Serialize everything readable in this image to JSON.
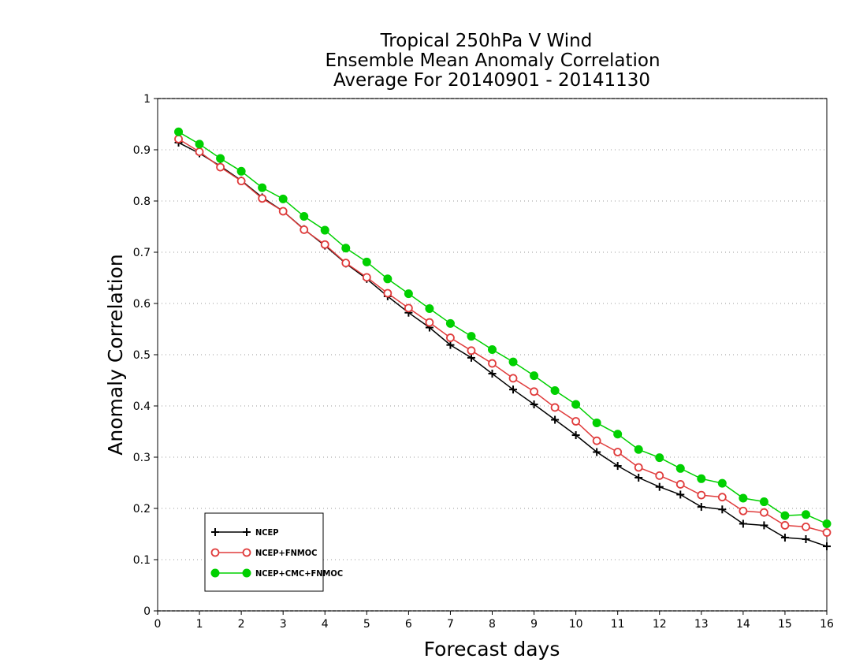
{
  "chart_data": {
    "type": "line",
    "title": [
      "Tropical 250hPa V Wind",
      "Ensemble Mean Anomaly Correlation",
      "Average For 20140901 - 20141130"
    ],
    "xlabel": "Forecast days",
    "ylabel": "Anomaly Correlation",
    "xlim": [
      0,
      16
    ],
    "ylim": [
      0,
      1
    ],
    "x_ticks": [
      0,
      1,
      2,
      3,
      4,
      5,
      6,
      7,
      8,
      9,
      10,
      11,
      12,
      13,
      14,
      15,
      16
    ],
    "y_ticks": [
      0,
      0.1,
      0.2,
      0.3,
      0.4,
      0.5,
      0.6,
      0.7,
      0.8,
      0.9,
      1
    ],
    "y_tick_labels": [
      "0",
      "0.1",
      "0.2",
      "0.3",
      "0.4",
      "0.5",
      "0.6",
      "0.7",
      "0.8",
      "0.9",
      "1"
    ],
    "grid": "horizontal dotted",
    "legend_position": "bottom-left",
    "x": [
      0.5,
      1,
      1.5,
      2,
      2.5,
      3,
      3.5,
      4,
      4.5,
      5,
      5.5,
      6,
      6.5,
      7,
      7.5,
      8,
      8.5,
      9,
      9.5,
      10,
      10.5,
      11,
      11.5,
      12,
      12.5,
      13,
      13.5,
      14,
      14.5,
      15,
      15.5,
      16
    ],
    "series": [
      {
        "name": "NCEP",
        "color": "#000000",
        "marker": "plus",
        "values": [
          0.914,
          0.893,
          0.868,
          0.84,
          0.807,
          0.78,
          0.745,
          0.713,
          0.678,
          0.648,
          0.614,
          0.582,
          0.553,
          0.519,
          0.494,
          0.463,
          0.432,
          0.403,
          0.373,
          0.343,
          0.31,
          0.283,
          0.26,
          0.242,
          0.227,
          0.203,
          0.198,
          0.17,
          0.167,
          0.143,
          0.14,
          0.126
        ]
      },
      {
        "name": "NCEP+FNMOC",
        "color": "#e03c3c",
        "marker": "open-circle",
        "values": [
          0.921,
          0.896,
          0.866,
          0.839,
          0.805,
          0.78,
          0.744,
          0.715,
          0.679,
          0.651,
          0.62,
          0.591,
          0.563,
          0.533,
          0.508,
          0.483,
          0.454,
          0.428,
          0.397,
          0.37,
          0.332,
          0.31,
          0.28,
          0.264,
          0.247,
          0.226,
          0.222,
          0.195,
          0.192,
          0.167,
          0.164,
          0.153
        ]
      },
      {
        "name": "NCEP+CMC+FNMOC",
        "color": "#00d000",
        "marker": "filled-circle",
        "values": [
          0.935,
          0.911,
          0.883,
          0.858,
          0.826,
          0.804,
          0.77,
          0.743,
          0.708,
          0.681,
          0.648,
          0.619,
          0.59,
          0.561,
          0.536,
          0.51,
          0.486,
          0.459,
          0.43,
          0.403,
          0.367,
          0.345,
          0.315,
          0.299,
          0.278,
          0.258,
          0.249,
          0.22,
          0.213,
          0.186,
          0.188,
          0.17
        ]
      }
    ]
  }
}
